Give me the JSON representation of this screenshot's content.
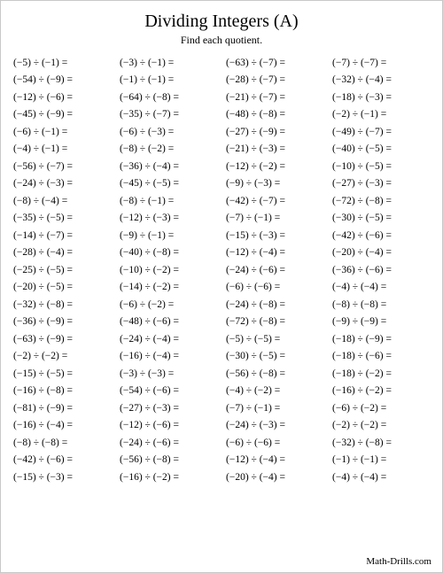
{
  "title": "Dividing Integers (A)",
  "subtitle": "Find each quotient.",
  "footer": "Math-Drills.com",
  "columns": [
    [
      [
        -5,
        -1
      ],
      [
        -54,
        -9
      ],
      [
        -12,
        -6
      ],
      [
        -45,
        -9
      ],
      [
        -6,
        -1
      ],
      [
        -4,
        -1
      ],
      [
        -56,
        -7
      ],
      [
        -24,
        -3
      ],
      [
        -8,
        -4
      ],
      [
        -35,
        -5
      ],
      [
        -14,
        -7
      ],
      [
        -28,
        -4
      ],
      [
        -25,
        -5
      ],
      [
        -20,
        -5
      ],
      [
        -32,
        -8
      ],
      [
        -36,
        -9
      ],
      [
        -63,
        -9
      ],
      [
        -2,
        -2
      ],
      [
        -15,
        -5
      ],
      [
        -16,
        -8
      ],
      [
        -81,
        -9
      ],
      [
        -16,
        -4
      ],
      [
        -8,
        -8
      ],
      [
        -42,
        -6
      ],
      [
        -15,
        -3
      ]
    ],
    [
      [
        -3,
        -1
      ],
      [
        -1,
        -1
      ],
      [
        -64,
        -8
      ],
      [
        -35,
        -7
      ],
      [
        -6,
        -3
      ],
      [
        -8,
        -2
      ],
      [
        -36,
        -4
      ],
      [
        -45,
        -5
      ],
      [
        -8,
        -1
      ],
      [
        -12,
        -3
      ],
      [
        -9,
        -1
      ],
      [
        -40,
        -8
      ],
      [
        -10,
        -2
      ],
      [
        -14,
        -2
      ],
      [
        -6,
        -2
      ],
      [
        -48,
        -6
      ],
      [
        -24,
        -4
      ],
      [
        -16,
        -4
      ],
      [
        -3,
        -3
      ],
      [
        -54,
        -6
      ],
      [
        -27,
        -3
      ],
      [
        -12,
        -6
      ],
      [
        -24,
        -6
      ],
      [
        -56,
        -8
      ],
      [
        -16,
        -2
      ]
    ],
    [
      [
        -63,
        -7
      ],
      [
        -28,
        -7
      ],
      [
        -21,
        -7
      ],
      [
        -48,
        -8
      ],
      [
        -27,
        -9
      ],
      [
        -21,
        -3
      ],
      [
        -12,
        -2
      ],
      [
        -9,
        -3
      ],
      [
        -42,
        -7
      ],
      [
        -7,
        -1
      ],
      [
        -15,
        -3
      ],
      [
        -12,
        -4
      ],
      [
        -24,
        -6
      ],
      [
        -6,
        -6
      ],
      [
        -24,
        -8
      ],
      [
        -72,
        -8
      ],
      [
        -5,
        -5
      ],
      [
        -30,
        -5
      ],
      [
        -56,
        -8
      ],
      [
        -4,
        -2
      ],
      [
        -7,
        -1
      ],
      [
        -24,
        -3
      ],
      [
        -6,
        -6
      ],
      [
        -12,
        -4
      ],
      [
        -20,
        -4
      ]
    ],
    [
      [
        -7,
        -7
      ],
      [
        -32,
        -4
      ],
      [
        -18,
        -3
      ],
      [
        -2,
        -1
      ],
      [
        -49,
        -7
      ],
      [
        -40,
        -5
      ],
      [
        -10,
        -5
      ],
      [
        -27,
        -3
      ],
      [
        -72,
        -8
      ],
      [
        -30,
        -5
      ],
      [
        -42,
        -6
      ],
      [
        -20,
        -4
      ],
      [
        -36,
        -6
      ],
      [
        -4,
        -4
      ],
      [
        -8,
        -8
      ],
      [
        -9,
        -9
      ],
      [
        -18,
        -9
      ],
      [
        -18,
        -6
      ],
      [
        -18,
        -2
      ],
      [
        -16,
        -2
      ],
      [
        -6,
        -2
      ],
      [
        -2,
        -2
      ],
      [
        -32,
        -8
      ],
      [
        -1,
        -1
      ],
      [
        -4,
        -4
      ]
    ]
  ]
}
